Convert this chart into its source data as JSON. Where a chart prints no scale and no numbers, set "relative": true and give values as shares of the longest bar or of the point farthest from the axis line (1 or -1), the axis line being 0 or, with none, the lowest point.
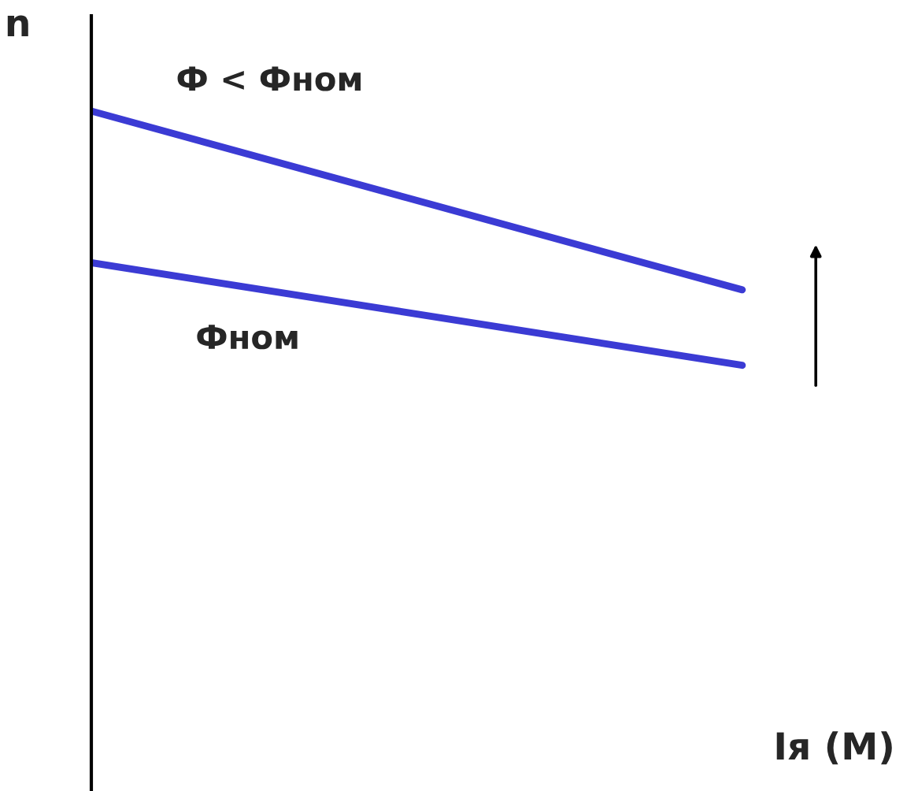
{
  "chart_data": {
    "type": "line",
    "relative": true,
    "ylabel": "n",
    "xlabel": "Iя (M)",
    "categories": [
      null,
      null
    ],
    "series": [
      {
        "name": "Ф < Фном",
        "color": "#3b3bd4",
        "values": [
          1,
          0.737
        ]
      },
      {
        "name": "Фном",
        "color": "#3b3bd4",
        "values": [
          0.777,
          0.626
        ]
      }
    ],
    "legend": false,
    "marker": "none",
    "line_style": "solid"
  }
}
